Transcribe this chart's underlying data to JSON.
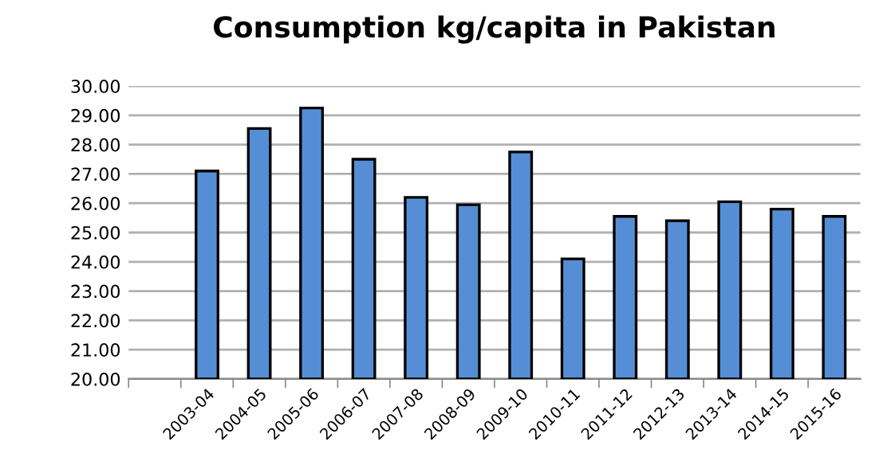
{
  "chart_data": {
    "type": "bar",
    "title": "Consumption kg/capita in Pakistan",
    "categories": [
      null,
      "2003-04",
      "2004-05",
      "2005-06",
      "2006-07",
      "2007-08",
      "2008-09",
      "2009-10",
      "2010-11",
      "2011-12",
      "2012-13",
      "2013-14",
      "2014-15",
      "2015-16"
    ],
    "values": [
      null,
      27.1,
      28.55,
      29.25,
      27.5,
      26.2,
      25.95,
      27.75,
      24.1,
      25.55,
      25.4,
      26.05,
      25.8,
      25.55
    ],
    "color": "#558ed5",
    "ylim": [
      20,
      30
    ],
    "yticks": [
      {
        "value": 20,
        "label": "20.00"
      },
      {
        "value": 21,
        "label": "21.00"
      },
      {
        "value": 22,
        "label": "22.00"
      },
      {
        "value": 23,
        "label": "23.00"
      },
      {
        "value": 24,
        "label": "24.00"
      },
      {
        "value": 25,
        "label": "25.00"
      },
      {
        "value": 26,
        "label": "26.00"
      },
      {
        "value": 27,
        "label": "27.00"
      },
      {
        "value": 28,
        "label": "28.00"
      },
      {
        "value": 29,
        "label": "29.00"
      },
      {
        "value": 30,
        "label": "30.00"
      }
    ],
    "grid": "y"
  }
}
